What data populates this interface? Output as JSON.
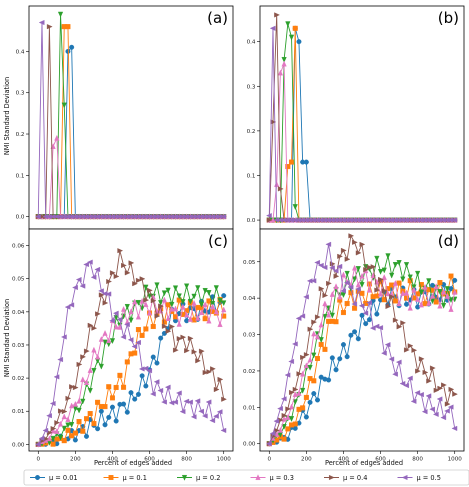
{
  "figure": {
    "ylabel": "NMI Standard Deviation",
    "xlabel": "Percent of edges added"
  },
  "legend": {
    "placement": "bottom",
    "entries": [
      {
        "label": "μ = 0.01",
        "color": "#1f77b4",
        "marker": "circle"
      },
      {
        "label": "μ = 0.1",
        "color": "#ff7f0e",
        "marker": "square"
      },
      {
        "label": "μ = 0.2",
        "color": "#2ca02c",
        "marker": "triangle-down"
      },
      {
        "label": "μ = 0.3",
        "color": "#e377c2",
        "marker": "triangle-up"
      },
      {
        "label": "μ = 0.4",
        "color": "#8c564b",
        "marker": "triangle-right"
      },
      {
        "label": "μ = 0.5",
        "color": "#9467bd",
        "marker": "triangle-left"
      }
    ]
  },
  "chart_data": [
    {
      "type": "line",
      "panel_label": "(a)",
      "xlim": [
        -50,
        1050
      ],
      "ylim": [
        -0.03,
        0.51
      ],
      "yticks": [
        "0.0",
        "0.1",
        "0.2",
        "0.3",
        "0.4"
      ],
      "ytick_values": [
        0,
        0.1,
        0.2,
        0.3,
        0.4
      ],
      "xticks": [],
      "xtick_values": [],
      "x_start": 0,
      "x_end": 1000,
      "x_step": 20,
      "series": [
        {
          "peaks": [
            [
              160,
              0.4
            ],
            [
              180,
              0.41
            ]
          ]
        },
        {
          "peaks": [
            [
              140,
              0.46
            ],
            [
              160,
              0.46
            ]
          ]
        },
        {
          "peaks": [
            [
              120,
              0.49
            ],
            [
              140,
              0.27
            ]
          ]
        },
        {
          "peaks": [
            [
              80,
              0.17
            ],
            [
              100,
              0.19
            ]
          ]
        },
        {
          "peaks": [
            [
              60,
              0.46
            ]
          ]
        },
        {
          "peaks": [
            [
              20,
              0.47
            ]
          ]
        }
      ]
    },
    {
      "type": "line",
      "panel_label": "(b)",
      "xlim": [
        -50,
        1050
      ],
      "ylim": [
        -0.02,
        0.48
      ],
      "yticks": [
        "0.0",
        "0.1",
        "0.2",
        "0.3",
        "0.4"
      ],
      "ytick_values": [
        0,
        0.1,
        0.2,
        0.3,
        0.4
      ],
      "xticks": [],
      "xtick_values": [],
      "x_start": 0,
      "x_end": 1000,
      "x_step": 20,
      "series": [
        {
          "peaks": [
            [
              140,
              0.43
            ],
            [
              160,
              0.4
            ],
            [
              180,
              0.13
            ],
            [
              200,
              0.13
            ]
          ]
        },
        {
          "peaks": [
            [
              100,
              0.12
            ],
            [
              120,
              0.13
            ],
            [
              140,
              0.43
            ]
          ]
        },
        {
          "peaks": [
            [
              80,
              0.36
            ],
            [
              100,
              0.44
            ],
            [
              120,
              0.41
            ],
            [
              140,
              0.03
            ]
          ]
        },
        {
          "peaks": [
            [
              40,
              0.08
            ],
            [
              60,
              0.33
            ],
            [
              80,
              0.35
            ]
          ]
        },
        {
          "peaks": [
            [
              20,
              0.22
            ],
            [
              40,
              0.46
            ],
            [
              60,
              0.07
            ]
          ]
        },
        {
          "peaks": [
            [
              0,
              0.01
            ],
            [
              20,
              0.43
            ]
          ]
        }
      ]
    },
    {
      "type": "line",
      "panel_label": "(c)",
      "xlim": [
        -50,
        1050
      ],
      "ylim": [
        -0.002,
        0.065
      ],
      "yticks": [
        "0.00",
        "0.01",
        "0.02",
        "0.03",
        "0.04",
        "0.05",
        "0.06"
      ],
      "ytick_values": [
        0,
        0.01,
        0.02,
        0.03,
        0.04,
        0.05,
        0.06
      ],
      "xticks": [
        "0",
        "200",
        "400",
        "600",
        "800",
        "1000"
      ],
      "xtick_values": [
        0,
        200,
        400,
        600,
        800,
        1000
      ],
      "x_start": 0,
      "x_end": 1000,
      "x_step": 20,
      "series": [
        {
          "knots": [
            [
              0,
              0
            ],
            [
              100,
              0.001
            ],
            [
              200,
              0.003
            ],
            [
              300,
              0.006
            ],
            [
              400,
              0.009
            ],
            [
              500,
              0.013
            ],
            [
              560,
              0.018
            ],
            [
              600,
              0.022
            ],
            [
              660,
              0.03
            ],
            [
              700,
              0.037
            ],
            [
              760,
              0.04
            ],
            [
              840,
              0.04
            ],
            [
              900,
              0.041
            ],
            [
              1000,
              0.043
            ]
          ]
        },
        {
          "knots": [
            [
              0,
              0
            ],
            [
              100,
              0.001
            ],
            [
              200,
              0.004
            ],
            [
              300,
              0.009
            ],
            [
              400,
              0.016
            ],
            [
              460,
              0.02
            ],
            [
              520,
              0.03
            ],
            [
              580,
              0.036
            ],
            [
              640,
              0.039
            ],
            [
              700,
              0.04
            ],
            [
              780,
              0.041
            ],
            [
              860,
              0.04
            ],
            [
              940,
              0.041
            ],
            [
              1000,
              0.041
            ]
          ]
        },
        {
          "knots": [
            [
              0,
              0
            ],
            [
              60,
              0.001
            ],
            [
              140,
              0.004
            ],
            [
              200,
              0.009
            ],
            [
              260,
              0.016
            ],
            [
              320,
              0.024
            ],
            [
              400,
              0.033
            ],
            [
              440,
              0.038
            ],
            [
              520,
              0.041
            ],
            [
              600,
              0.046
            ],
            [
              680,
              0.045
            ],
            [
              760,
              0.045
            ],
            [
              860,
              0.045
            ],
            [
              940,
              0.045
            ],
            [
              1000,
              0.044
            ]
          ]
        },
        {
          "knots": [
            [
              0,
              0
            ],
            [
              60,
              0.002
            ],
            [
              120,
              0.006
            ],
            [
              200,
              0.012
            ],
            [
              260,
              0.02
            ],
            [
              320,
              0.029
            ],
            [
              380,
              0.034
            ],
            [
              440,
              0.037
            ],
            [
              520,
              0.041
            ],
            [
              600,
              0.042
            ],
            [
              680,
              0.041
            ],
            [
              760,
              0.039
            ],
            [
              860,
              0.04
            ],
            [
              940,
              0.04
            ],
            [
              1000,
              0.038
            ]
          ]
        },
        {
          "knots": [
            [
              0,
              0
            ],
            [
              60,
              0.003
            ],
            [
              100,
              0.007
            ],
            [
              140,
              0.011
            ],
            [
              200,
              0.019
            ],
            [
              260,
              0.03
            ],
            [
              320,
              0.04
            ],
            [
              380,
              0.048
            ],
            [
              440,
              0.056
            ],
            [
              500,
              0.052
            ],
            [
              560,
              0.048
            ],
            [
              620,
              0.043
            ],
            [
              680,
              0.037
            ],
            [
              740,
              0.031
            ],
            [
              800,
              0.031
            ],
            [
              860,
              0.027
            ],
            [
              920,
              0.022
            ],
            [
              980,
              0.018
            ],
            [
              1000,
              0.013
            ]
          ]
        },
        {
          "knots": [
            [
              0,
              0
            ],
            [
              40,
              0.004
            ],
            [
              80,
              0.013
            ],
            [
              120,
              0.026
            ],
            [
              160,
              0.04
            ],
            [
              200,
              0.047
            ],
            [
              240,
              0.05
            ],
            [
              280,
              0.055
            ],
            [
              320,
              0.05
            ],
            [
              360,
              0.046
            ],
            [
              400,
              0.04
            ],
            [
              460,
              0.035
            ],
            [
              520,
              0.031
            ],
            [
              560,
              0.025
            ],
            [
              620,
              0.018
            ],
            [
              680,
              0.015
            ],
            [
              760,
              0.013
            ],
            [
              840,
              0.011
            ],
            [
              920,
              0.01
            ],
            [
              1000,
              0.007
            ]
          ]
        }
      ]
    },
    {
      "type": "line",
      "panel_label": "(d)",
      "xlim": [
        -50,
        1050
      ],
      "ylim": [
        -0.002,
        0.059
      ],
      "yticks": [
        "0.00",
        "0.01",
        "0.02",
        "0.03",
        "0.04",
        "0.05"
      ],
      "ytick_values": [
        0,
        0.01,
        0.02,
        0.03,
        0.04,
        0.05
      ],
      "xticks": [
        "0",
        "200",
        "400",
        "600",
        "800",
        "1000"
      ],
      "xtick_values": [
        0,
        200,
        400,
        600,
        800,
        1000
      ],
      "x_start": 0,
      "x_end": 1000,
      "x_step": 20,
      "series": [
        {
          "knots": [
            [
              0,
              0
            ],
            [
              100,
              0.002
            ],
            [
              200,
              0.009
            ],
            [
              300,
              0.018
            ],
            [
              400,
              0.025
            ],
            [
              460,
              0.03
            ],
            [
              520,
              0.034
            ],
            [
              580,
              0.038
            ],
            [
              640,
              0.041
            ],
            [
              700,
              0.04
            ],
            [
              780,
              0.04
            ],
            [
              860,
              0.041
            ],
            [
              940,
              0.041
            ],
            [
              1000,
              0.043
            ]
          ]
        },
        {
          "knots": [
            [
              0,
              0
            ],
            [
              80,
              0.002
            ],
            [
              160,
              0.008
            ],
            [
              220,
              0.016
            ],
            [
              280,
              0.026
            ],
            [
              340,
              0.034
            ],
            [
              400,
              0.038
            ],
            [
              460,
              0.04
            ],
            [
              520,
              0.041
            ],
            [
              600,
              0.042
            ],
            [
              680,
              0.042
            ],
            [
              760,
              0.042
            ],
            [
              860,
              0.041
            ],
            [
              940,
              0.042
            ],
            [
              1000,
              0.044
            ]
          ]
        },
        {
          "knots": [
            [
              0,
              0
            ],
            [
              60,
              0.003
            ],
            [
              120,
              0.008
            ],
            [
              180,
              0.016
            ],
            [
              240,
              0.025
            ],
            [
              300,
              0.034
            ],
            [
              360,
              0.04
            ],
            [
              420,
              0.044
            ],
            [
              480,
              0.046
            ],
            [
              560,
              0.048
            ],
            [
              640,
              0.049
            ],
            [
              720,
              0.048
            ],
            [
              800,
              0.044
            ],
            [
              880,
              0.042
            ],
            [
              960,
              0.04
            ],
            [
              1000,
              0.041
            ]
          ]
        },
        {
          "knots": [
            [
              0,
              0
            ],
            [
              60,
              0.004
            ],
            [
              120,
              0.01
            ],
            [
              180,
              0.018
            ],
            [
              240,
              0.028
            ],
            [
              300,
              0.036
            ],
            [
              360,
              0.042
            ],
            [
              420,
              0.045
            ],
            [
              500,
              0.046
            ],
            [
              580,
              0.044
            ],
            [
              660,
              0.042
            ],
            [
              740,
              0.04
            ],
            [
              820,
              0.04
            ],
            [
              900,
              0.041
            ],
            [
              1000,
              0.039
            ]
          ]
        },
        {
          "knots": [
            [
              0,
              0
            ],
            [
              40,
              0.004
            ],
            [
              100,
              0.01
            ],
            [
              160,
              0.019
            ],
            [
              220,
              0.03
            ],
            [
              280,
              0.04
            ],
            [
              340,
              0.047
            ],
            [
              400,
              0.052
            ],
            [
              460,
              0.056
            ],
            [
              520,
              0.05
            ],
            [
              580,
              0.045
            ],
            [
              640,
              0.04
            ],
            [
              700,
              0.033
            ],
            [
              760,
              0.026
            ],
            [
              820,
              0.021
            ],
            [
              880,
              0.018
            ],
            [
              940,
              0.014
            ],
            [
              1000,
              0.013
            ]
          ]
        },
        {
          "knots": [
            [
              0,
              0
            ],
            [
              40,
              0.006
            ],
            [
              80,
              0.013
            ],
            [
              120,
              0.023
            ],
            [
              160,
              0.033
            ],
            [
              200,
              0.04
            ],
            [
              240,
              0.047
            ],
            [
              280,
              0.049
            ],
            [
              320,
              0.052
            ],
            [
              360,
              0.048
            ],
            [
              420,
              0.043
            ],
            [
              480,
              0.04
            ],
            [
              540,
              0.036
            ],
            [
              600,
              0.03
            ],
            [
              660,
              0.023
            ],
            [
              720,
              0.018
            ],
            [
              800,
              0.013
            ],
            [
              880,
              0.01
            ],
            [
              960,
              0.009
            ],
            [
              1000,
              0.007
            ]
          ]
        }
      ]
    }
  ]
}
